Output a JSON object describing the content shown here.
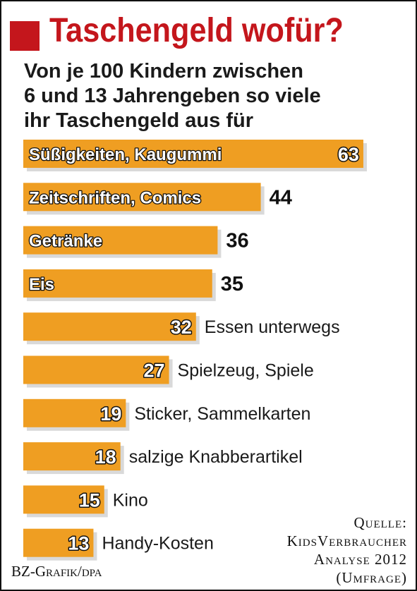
{
  "title": "Taschengeld wofür?",
  "subtitle_lines": [
    "Von je 100 Kindern zwischen",
    "6 und 13 Jahrengeben so viele",
    "ihr Taschengeld aus für"
  ],
  "chart_data": {
    "type": "bar",
    "orientation": "horizontal",
    "categories": [
      "Süßigkeiten, Kaugummi",
      "Zeitschriften, Comics",
      "Getränke",
      "Eis",
      "Essen unterwegs",
      "Spielzeug, Spiele",
      "Sticker, Sammelkarten",
      "salzige Knabberartikel",
      "Kino",
      "Handy-Kosten"
    ],
    "values": [
      63,
      44,
      36,
      35,
      32,
      27,
      19,
      18,
      15,
      13
    ],
    "label_inside_bar": [
      true,
      true,
      true,
      true,
      false,
      false,
      false,
      false,
      false,
      false
    ],
    "bar_color": "#ef9e22",
    "shadow_color": "#d9d9d9"
  },
  "credit": "BZ-Grafik/dpa",
  "source_lines": [
    "Quelle:",
    "KidsVerbraucher",
    "Analyse 2012",
    "(Umfrage)"
  ]
}
